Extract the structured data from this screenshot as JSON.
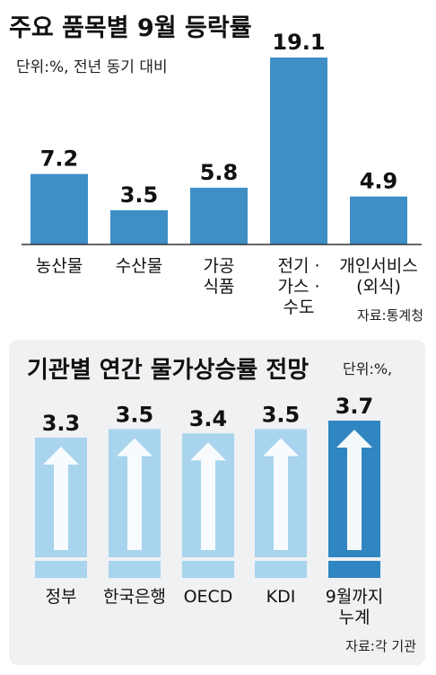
{
  "chart_data": [
    {
      "type": "bar",
      "title": "주요 품목별 9월 등락률",
      "unit_note": "단위:%, 전년 동기 대비",
      "categories": [
        "농산물",
        "수산물",
        "가공 식품",
        "전기 · 가스 · 수도",
        "개인서비스 (외식)"
      ],
      "category_lines": [
        [
          "농산물"
        ],
        [
          "수산물"
        ],
        [
          "가공",
          "식품"
        ],
        [
          "전기 ·",
          "가스 ·",
          "수도"
        ],
        [
          "개인서비스",
          "(외식)"
        ]
      ],
      "values": [
        7.2,
        3.5,
        5.8,
        19.1,
        4.9
      ],
      "ylim": [
        0,
        20
      ],
      "grid": false,
      "source": "자료:통계청",
      "colors": {
        "bar": "#3e8fc6",
        "axis": "#333333"
      }
    },
    {
      "type": "bar",
      "title": "기관별 연간 물가상승률 전망",
      "unit_note": "단위:%,",
      "categories": [
        "정부",
        "한국은행",
        "OECD",
        "KDI",
        "9월까지 누계"
      ],
      "category_lines": [
        [
          "정부"
        ],
        [
          "한국은행"
        ],
        [
          "OECD"
        ],
        [
          "KDI"
        ],
        [
          "9월까지",
          "누계"
        ]
      ],
      "values": [
        3.3,
        3.5,
        3.4,
        3.5,
        3.7
      ],
      "highlight_index": 4,
      "ylim": [
        0,
        3.7
      ],
      "grid": false,
      "source": "자료:각 기관",
      "colors": {
        "bar": "#a8d4ee",
        "bar_highlight": "#2f86c0",
        "arrow": "#ffffff",
        "panel": "#f0f1f3"
      },
      "icon": "up-arrow-icon"
    }
  ]
}
